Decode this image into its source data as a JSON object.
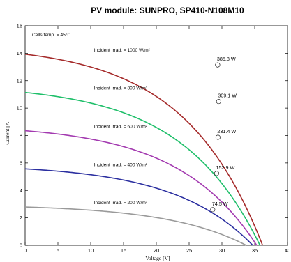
{
  "chart_data": {
    "type": "line",
    "title": "PV module:  SUNPRO,  SP410-N108M10",
    "xlabel": "Voltage [V]",
    "ylabel": "Current [A]",
    "xlim": [
      0,
      40
    ],
    "ylim": [
      0,
      16
    ],
    "x_ticks": [
      "0",
      "5",
      "10",
      "15",
      "20",
      "25",
      "30",
      "35",
      "40"
    ],
    "y_ticks": [
      "0",
      "2",
      "4",
      "6",
      "8",
      "10",
      "12",
      "14",
      "16"
    ],
    "grid": false,
    "cell_temp_note": "Cells temp. = 45°C",
    "series": [
      {
        "label": "Incident Irrad. = 1000 W/m²",
        "color": "#a52a2a",
        "isc": 13.93,
        "voc": 36.2,
        "mpp_v": 29.35,
        "mpp_i": 13.15,
        "mpp_label": "385.8 W"
      },
      {
        "label": "Incident Irrad. = 800 W/m²",
        "color": "#1fbf6a",
        "isc": 11.14,
        "voc": 35.8,
        "mpp_v": 29.5,
        "mpp_i": 10.48,
        "mpp_label": "309.1 W"
      },
      {
        "label": "Incident Irrad. = 600 W/m²",
        "color": "#a33ab0",
        "isc": 8.35,
        "voc": 35.3,
        "mpp_v": 29.4,
        "mpp_i": 7.87,
        "mpp_label": "231.4 W"
      },
      {
        "label": "Incident Irrad. = 400 W/m²",
        "color": "#2b2fa0",
        "isc": 5.57,
        "voc": 34.7,
        "mpp_v": 29.2,
        "mpp_i": 5.24,
        "mpp_label": "152.9 W"
      },
      {
        "label": "Incident Irrad. = 200 W/m²",
        "color": "#9a9a9a",
        "isc": 2.79,
        "voc": 33.7,
        "mpp_v": 28.6,
        "mpp_i": 2.6,
        "mpp_label": "74.5 W"
      }
    ]
  }
}
